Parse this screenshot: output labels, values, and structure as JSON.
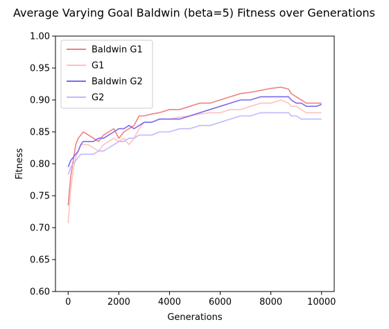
{
  "chart_data": {
    "type": "line",
    "title": "Average Varying Goal Baldwin (beta=5) Fitness over Generations",
    "xlabel": "Generations",
    "ylabel": "Fitness",
    "xlim": [
      -500,
      10500
    ],
    "ylim": [
      0.6,
      1.0
    ],
    "xticks": [
      0,
      2000,
      4000,
      6000,
      8000,
      10000
    ],
    "yticks": [
      0.6,
      0.65,
      0.7,
      0.75,
      0.8,
      0.85,
      0.9,
      0.95,
      1.0
    ],
    "xtick_labels": [
      "0",
      "2000",
      "4000",
      "6000",
      "8000",
      "10000"
    ],
    "ytick_labels": [
      "0.60",
      "0.65",
      "0.70",
      "0.75",
      "0.80",
      "0.85",
      "0.90",
      "0.95",
      "1.00"
    ],
    "grid": false,
    "legend_position": "top-left",
    "x": [
      0,
      100,
      200,
      300,
      400,
      500,
      600,
      800,
      1000,
      1200,
      1400,
      1600,
      1800,
      2000,
      2200,
      2400,
      2600,
      2800,
      3000,
      3300,
      3600,
      4000,
      4400,
      4800,
      5200,
      5600,
      6000,
      6400,
      6800,
      7200,
      7600,
      8000,
      8400,
      8700,
      8800,
      9000,
      9200,
      9400,
      9600,
      9800,
      10000
    ],
    "series": [
      {
        "name": "Baldwin G1",
        "color": "#f08080",
        "values": [
          0.735,
          0.78,
          0.805,
          0.83,
          0.84,
          0.845,
          0.85,
          0.845,
          0.84,
          0.835,
          0.845,
          0.85,
          0.855,
          0.84,
          0.85,
          0.855,
          0.86,
          0.875,
          0.875,
          0.878,
          0.88,
          0.885,
          0.885,
          0.89,
          0.895,
          0.895,
          0.9,
          0.905,
          0.91,
          0.912,
          0.915,
          0.918,
          0.92,
          0.917,
          0.91,
          0.905,
          0.9,
          0.895,
          0.895,
          0.895,
          0.895
        ]
      },
      {
        "name": "G1",
        "color": "#ffc0c0",
        "values": [
          0.707,
          0.76,
          0.79,
          0.81,
          0.82,
          0.83,
          0.83,
          0.83,
          0.825,
          0.82,
          0.83,
          0.835,
          0.84,
          0.835,
          0.84,
          0.83,
          0.84,
          0.855,
          0.865,
          0.865,
          0.87,
          0.87,
          0.873,
          0.875,
          0.878,
          0.88,
          0.88,
          0.885,
          0.885,
          0.89,
          0.895,
          0.895,
          0.9,
          0.895,
          0.89,
          0.89,
          0.885,
          0.88,
          0.88,
          0.88,
          0.88
        ]
      },
      {
        "name": "Baldwin G2",
        "color": "#7b68ee",
        "values": [
          0.795,
          0.805,
          0.81,
          0.815,
          0.82,
          0.83,
          0.835,
          0.835,
          0.835,
          0.84,
          0.84,
          0.845,
          0.85,
          0.855,
          0.855,
          0.86,
          0.855,
          0.86,
          0.865,
          0.865,
          0.87,
          0.87,
          0.87,
          0.875,
          0.88,
          0.885,
          0.89,
          0.895,
          0.9,
          0.9,
          0.905,
          0.905,
          0.905,
          0.905,
          0.9,
          0.895,
          0.895,
          0.89,
          0.89,
          0.89,
          0.893
        ]
      },
      {
        "name": "G2",
        "color": "#c0b8ff",
        "values": [
          0.783,
          0.795,
          0.8,
          0.805,
          0.81,
          0.815,
          0.815,
          0.815,
          0.815,
          0.82,
          0.82,
          0.825,
          0.83,
          0.835,
          0.835,
          0.84,
          0.84,
          0.845,
          0.845,
          0.845,
          0.85,
          0.85,
          0.855,
          0.855,
          0.86,
          0.86,
          0.865,
          0.87,
          0.875,
          0.875,
          0.88,
          0.88,
          0.88,
          0.88,
          0.875,
          0.875,
          0.87,
          0.87,
          0.87,
          0.87,
          0.87
        ]
      }
    ]
  }
}
